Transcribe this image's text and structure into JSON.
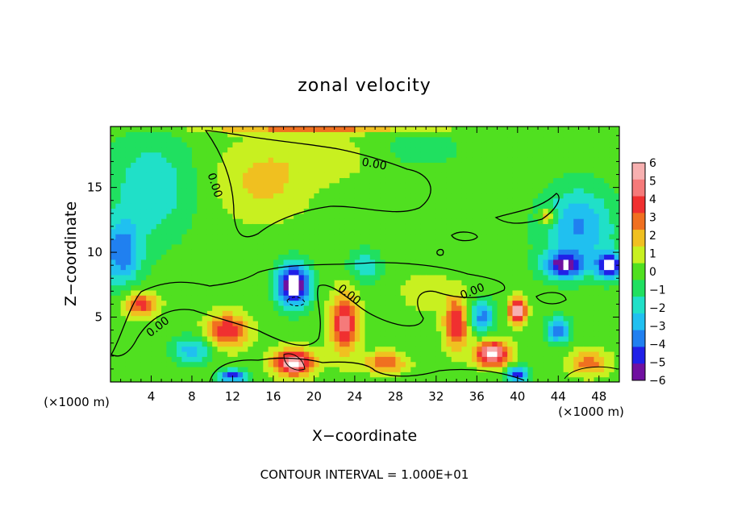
{
  "chart_data": {
    "type": "heatmap",
    "title": "zonal velocity",
    "xlabel": "X−coordinate",
    "ylabel": "Z−coordinate",
    "x_unit_left": "(×1000 m)",
    "x_unit_right": "(×1000 m)",
    "footer": "CONTOUR INTERVAL = 1.000E+01",
    "xlim": [
      0,
      50
    ],
    "ylim": [
      0,
      19.7
    ],
    "x_ticks": [
      4,
      8,
      12,
      16,
      20,
      24,
      28,
      32,
      36,
      40,
      44,
      48
    ],
    "x_tick_labels": [
      "4",
      "8",
      "12",
      "16",
      "20",
      "24",
      "28",
      "32",
      "36",
      "40",
      "44",
      "48"
    ],
    "y_ticks": [
      5,
      10,
      15
    ],
    "y_tick_labels": [
      "5",
      "10",
      "15"
    ],
    "contour_label": "0.00",
    "colorbar": {
      "ticks": [
        6,
        5,
        4,
        3,
        2,
        1,
        0,
        -1,
        -2,
        -3,
        -4,
        -5,
        -6
      ],
      "tick_labels": [
        "6",
        "5",
        "4",
        "3",
        "2",
        "1",
        "0",
        "−1",
        "−2",
        "−3",
        "−4",
        "−5",
        "−6"
      ],
      "colors": [
        "#f7b0b0",
        "#f57a7a",
        "#f03030",
        "#f07020",
        "#f0c020",
        "#c8f020",
        "#50e020",
        "#20e060",
        "#20e0c8",
        "#20c0f0",
        "#2080f0",
        "#2020e8",
        "#7010a0"
      ]
    },
    "background_level": 0,
    "features": [
      {
        "x": 15,
        "z": 15.5,
        "value": 1.8,
        "sx": 4.5,
        "sz": 3.0
      },
      {
        "x": 22,
        "z": 17.5,
        "value": 1.0,
        "sx": 5.0,
        "sz": 2.0
      },
      {
        "x": 4,
        "z": 15,
        "value": -2.4,
        "sx": 4.0,
        "sz": 4.0
      },
      {
        "x": 1,
        "z": 10,
        "value": -4.2,
        "sx": 2.0,
        "sz": 2.5
      },
      {
        "x": 46,
        "z": 12,
        "value": -3.6,
        "sx": 3.5,
        "sz": 3.0
      },
      {
        "x": 30,
        "z": 18,
        "value": -1.0,
        "sx": 5.0,
        "sz": 1.5
      },
      {
        "x": 18,
        "z": 7.5,
        "value": -7.5,
        "sx": 1.6,
        "sz": 1.6
      },
      {
        "x": 44.5,
        "z": 9,
        "value": -5.5,
        "sx": 2.0,
        "sz": 1.0
      },
      {
        "x": 49,
        "z": 9,
        "value": -6.5,
        "sx": 1.2,
        "sz": 1.0
      },
      {
        "x": 3,
        "z": 6,
        "value": 4.0,
        "sx": 1.6,
        "sz": 1.0
      },
      {
        "x": 11.5,
        "z": 4,
        "value": 4.5,
        "sx": 2.0,
        "sz": 1.3
      },
      {
        "x": 23,
        "z": 4.5,
        "value": 5.0,
        "sx": 1.4,
        "sz": 2.3
      },
      {
        "x": 18,
        "z": 1.5,
        "value": 6.5,
        "sx": 2.0,
        "sz": 1.0
      },
      {
        "x": 27,
        "z": 1.5,
        "value": 3.5,
        "sx": 2.0,
        "sz": 0.8
      },
      {
        "x": 34,
        "z": 4.5,
        "value": 4.5,
        "sx": 1.2,
        "sz": 2.0
      },
      {
        "x": 37.5,
        "z": 2.2,
        "value": 6.5,
        "sx": 1.6,
        "sz": 1.0
      },
      {
        "x": 40,
        "z": 5.5,
        "value": 6.5,
        "sx": 0.8,
        "sz": 1.0
      },
      {
        "x": 43,
        "z": 12.8,
        "value": 3.5,
        "sx": 0.8,
        "sz": 0.6
      },
      {
        "x": 47,
        "z": 1.5,
        "value": 3.0,
        "sx": 2.0,
        "sz": 1.0
      },
      {
        "x": 8,
        "z": 2.5,
        "value": -3.0,
        "sx": 2.0,
        "sz": 1.0
      },
      {
        "x": 36.5,
        "z": 5,
        "value": -4.0,
        "sx": 1.2,
        "sz": 1.2
      },
      {
        "x": 44,
        "z": 4,
        "value": -4.0,
        "sx": 1.2,
        "sz": 1.0
      },
      {
        "x": 40,
        "z": 0.6,
        "value": -5.5,
        "sx": 1.0,
        "sz": 0.6
      },
      {
        "x": 12,
        "z": 0.5,
        "value": -5.0,
        "sx": 1.4,
        "sz": 0.5
      },
      {
        "x": 25,
        "z": 9,
        "value": -2.5,
        "sx": 1.5,
        "sz": 1.2
      },
      {
        "x": 31,
        "z": 7,
        "value": 1.2,
        "sx": 2.5,
        "sz": 1.5
      },
      {
        "x": 20,
        "z": 19.5,
        "value": 2.5,
        "sx": 12.0,
        "sz": 0.3
      }
    ]
  }
}
